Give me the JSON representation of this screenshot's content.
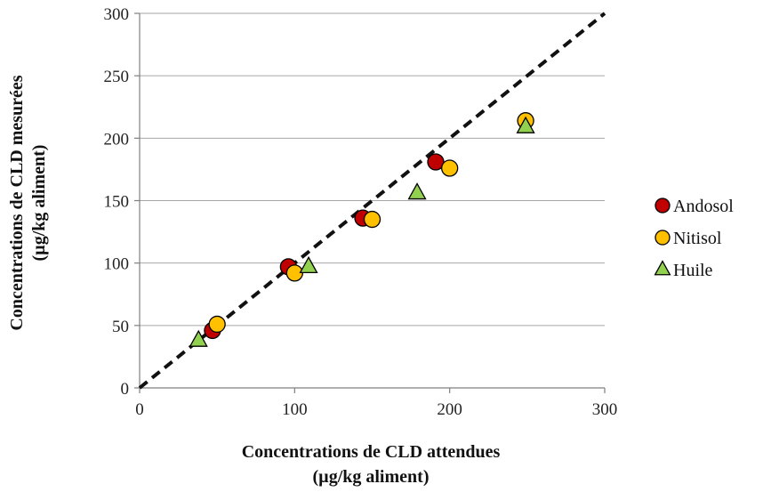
{
  "chart_data": {
    "type": "scatter",
    "xlabel": [
      "Concentrations de CLD attendues",
      "(µg/kg aliment)"
    ],
    "ylabel": [
      "Concentrations de CLD mesurées",
      "(µg/kg aliment)"
    ],
    "xlim": [
      0,
      300
    ],
    "ylim": [
      0,
      300
    ],
    "xticks": [
      0,
      100,
      200,
      300
    ],
    "yticks": [
      0,
      50,
      100,
      150,
      200,
      250,
      300
    ],
    "grid": "horizontal",
    "legend": "right",
    "reference_line": {
      "style": "dashed",
      "color": "#111111",
      "from": [
        0,
        0
      ],
      "to": [
        300,
        300
      ]
    },
    "series": [
      {
        "name": "Andosol",
        "marker": "circle",
        "color": "#c00000",
        "points": [
          [
            47,
            46
          ],
          [
            96,
            97
          ],
          [
            144,
            136
          ],
          [
            191,
            181
          ]
        ]
      },
      {
        "name": "Nitisol",
        "marker": "circle",
        "color": "#ffc000",
        "points": [
          [
            50,
            51
          ],
          [
            100,
            92
          ],
          [
            150,
            135
          ],
          [
            200,
            176
          ],
          [
            249,
            214
          ]
        ]
      },
      {
        "name": "Huile",
        "marker": "triangle",
        "color": "#92d050",
        "points": [
          [
            38,
            38
          ],
          [
            109,
            97
          ],
          [
            179,
            156
          ],
          [
            249,
            209
          ]
        ]
      }
    ]
  }
}
